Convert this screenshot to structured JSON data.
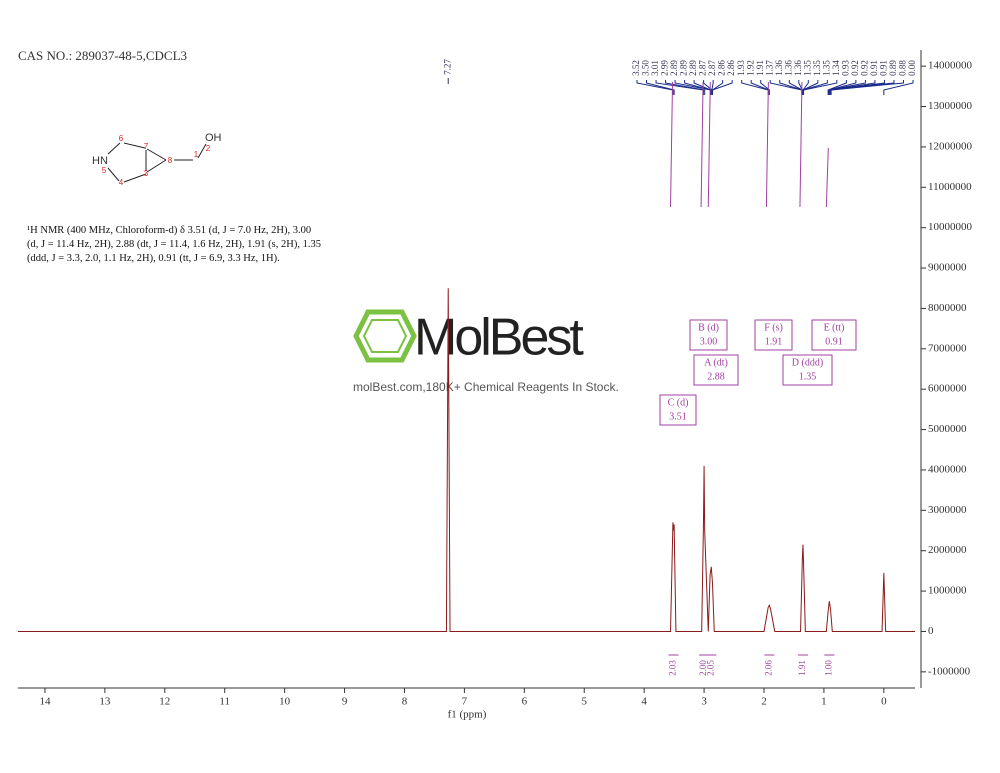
{
  "chart_data": {
    "type": "line",
    "header": "CAS NO.: 289037-48-5,CDCL3",
    "description": "¹H NMR (400 MHz, Chloroform-d) δ 3.51 (d, J = 7.0 Hz, 2H), 3.00 (d, J = 11.4 Hz, 2H), 2.88 (dt, J = 11.4, 1.6 Hz, 2H), 1.91 (s, 2H), 1.35 (ddd, J = 3.3, 2.0, 1.1 Hz, 2H), 0.91 (tt, J = 6.9, 3.3 Hz, 1H).",
    "structure": {
      "atoms": [
        "OH",
        "HN"
      ],
      "atom_numbers": [
        1,
        2,
        3,
        4,
        5,
        6,
        7,
        8
      ]
    },
    "watermark": {
      "brand": "MolBest",
      "tagline": "molBest.com,180K+ Chemical Reagents In Stock."
    },
    "xlabel": "f1 (ppm)",
    "x": [
      14.45,
      7.3,
      7.27,
      7.24,
      3.56,
      3.52,
      3.51,
      3.5,
      3.47,
      3.04,
      3.01,
      3.0,
      2.99,
      2.93,
      2.9,
      2.88,
      2.86,
      2.83,
      2.0,
      1.93,
      1.91,
      1.89,
      1.82,
      1.39,
      1.36,
      1.35,
      1.34,
      1.31,
      0.96,
      0.93,
      0.91,
      0.89,
      0.86,
      0.03,
      0.0,
      -0.03,
      -0.52
    ],
    "series": [
      {
        "name": "spectrum",
        "color": "#8b1a1a",
        "values": [
          0,
          0,
          8500000,
          0,
          0,
          2700000,
          2500000,
          2650000,
          0,
          0,
          2700000,
          4100000,
          2500000,
          0,
          1400000,
          1600000,
          1200000,
          0,
          0,
          600000,
          650000,
          550000,
          0,
          0,
          1800000,
          2150000,
          1700000,
          0,
          0,
          500000,
          750000,
          550000,
          0,
          0,
          1450000,
          0,
          0
        ]
      }
    ],
    "xlim": [
      14.45,
      -0.52
    ],
    "ylim": [
      -1400000,
      14400000
    ],
    "xticks": [
      14,
      13,
      12,
      11,
      10,
      9,
      8,
      7,
      6,
      5,
      4,
      3,
      2,
      1,
      0
    ],
    "yticks": [
      14000000,
      13000000,
      12000000,
      11000000,
      10000000,
      9000000,
      8000000,
      7000000,
      6000000,
      5000000,
      4000000,
      3000000,
      2000000,
      1000000,
      0,
      -1000000
    ],
    "solvent_peak": {
      "value": 7.27,
      "label": "7.27"
    },
    "peak_labels": [
      {
        "value": 3.52,
        "label": "3.52"
      },
      {
        "value": 3.5,
        "label": "3.50"
      },
      {
        "value": 3.01,
        "label": "3.01"
      },
      {
        "value": 2.99,
        "label": "2.99"
      },
      {
        "value": 2.89,
        "label": "2.89"
      },
      {
        "value": 2.89,
        "label": "2.89"
      },
      {
        "value": 2.89,
        "label": "2.89"
      },
      {
        "value": 2.87,
        "label": "2.87"
      },
      {
        "value": 2.87,
        "label": "2.87"
      },
      {
        "value": 2.86,
        "label": "2.86"
      },
      {
        "value": 2.86,
        "label": "2.86"
      },
      {
        "value": 1.93,
        "label": "1.93"
      },
      {
        "value": 1.92,
        "label": "1.92"
      },
      {
        "value": 1.91,
        "label": "1.91"
      },
      {
        "value": 1.37,
        "label": "1.37"
      },
      {
        "value": 1.36,
        "label": "1.36"
      },
      {
        "value": 1.36,
        "label": "1.36"
      },
      {
        "value": 1.36,
        "label": "1.36"
      },
      {
        "value": 1.35,
        "label": "1.35"
      },
      {
        "value": 1.35,
        "label": "1.35"
      },
      {
        "value": 1.35,
        "label": "1.35"
      },
      {
        "value": 1.34,
        "label": "1.34"
      },
      {
        "value": 0.93,
        "label": "0.93"
      },
      {
        "value": 0.92,
        "label": "0.92"
      },
      {
        "value": 0.92,
        "label": "0.92"
      },
      {
        "value": 0.91,
        "label": "0.91"
      },
      {
        "value": 0.91,
        "label": "0.91"
      },
      {
        "value": 0.89,
        "label": "0.89"
      },
      {
        "value": 0.88,
        "label": "0.88"
      },
      {
        "value": 0,
        "label": "0.00"
      }
    ],
    "integrals": [
      {
        "at": 3.51,
        "value": 2.03,
        "label": "2.03"
      },
      {
        "at": 3.0,
        "value": 2,
        "label": "2.00"
      },
      {
        "at": 2.88,
        "value": 2.05,
        "label": "2.05"
      },
      {
        "at": 1.91,
        "value": 2.06,
        "label": "2.06"
      },
      {
        "at": 1.35,
        "value": 1.91,
        "label": "1.91"
      },
      {
        "at": 0.91,
        "value": 1,
        "label": "1.00"
      }
    ],
    "multiplets": [
      {
        "name": "B (d)",
        "value": 3,
        "label": "3.00"
      },
      {
        "name": "F (s)",
        "value": 1.91,
        "label": "1.91"
      },
      {
        "name": "E (tt)",
        "value": 0.91,
        "label": "0.91"
      },
      {
        "name": "A (dt)",
        "value": 2.88,
        "label": "2.88"
      },
      {
        "name": "D (ddd)",
        "value": 1.35,
        "label": "1.35"
      },
      {
        "name": "C (d)",
        "value": 3.51,
        "label": "3.51"
      }
    ]
  }
}
